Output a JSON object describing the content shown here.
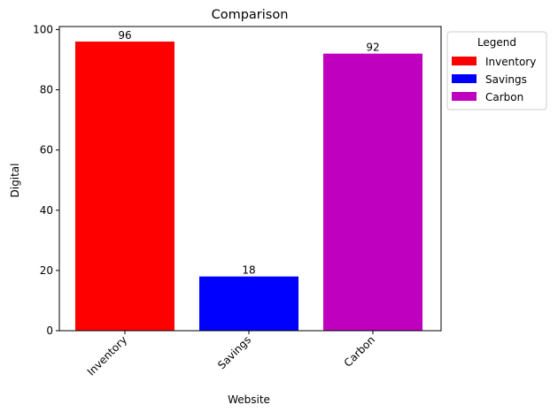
{
  "chart_data": {
    "type": "bar",
    "title": "Comparison",
    "xlabel": "Website",
    "ylabel": "Digital",
    "categories": [
      "Inventory",
      "Savings",
      "Carbon"
    ],
    "values": [
      96,
      18,
      92
    ],
    "colors": [
      "#ff0000",
      "#0000ff",
      "#bf00bf"
    ],
    "ylim": [
      0,
      101
    ],
    "yticks": [
      0,
      20,
      40,
      60,
      80,
      100
    ],
    "grid": false,
    "legend": {
      "title": "Legend",
      "placement": "outside-top-right",
      "entries": [
        "Inventory",
        "Savings",
        "Carbon"
      ]
    }
  }
}
